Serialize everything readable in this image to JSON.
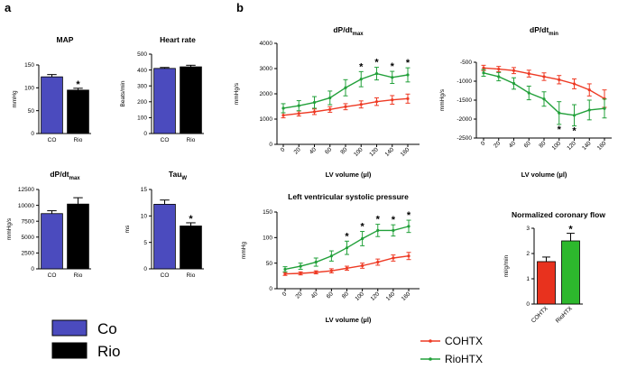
{
  "panel_labels": {
    "a": "a",
    "b": "b"
  },
  "colors": {
    "co": "#4B4BBE",
    "rio": "#000000",
    "cohtx": "#EE3A24",
    "riohtx": "#22A03A",
    "nc_cohtx": "#E8321E",
    "nc_riohtx": "#2DB82D"
  },
  "legend_a": [
    {
      "label": "Co",
      "color": "#4B4BBE"
    },
    {
      "label": "Rio",
      "color": "#000000"
    }
  ],
  "legend_b": [
    {
      "label": "COHTX",
      "color": "#EE3A24"
    },
    {
      "label": "RioHTX",
      "color": "#22A03A"
    }
  ],
  "chart_data": [
    {
      "id": "map",
      "type": "bar",
      "title": "MAP",
      "ylabel": "mmHg",
      "categories": [
        "CO",
        "Rio"
      ],
      "values": [
        124,
        95
      ],
      "errors": [
        5,
        4
      ],
      "ylim": [
        0,
        150
      ],
      "yticks": [
        "0",
        "50",
        "100",
        "150"
      ],
      "ytick_values": [
        0,
        50,
        100,
        150
      ],
      "colors": [
        "#4B4BBE",
        "#000000"
      ],
      "sig": [
        false,
        true
      ],
      "sig_label": "*"
    },
    {
      "id": "hr",
      "type": "bar",
      "title": "Heart rate",
      "ylabel": "Beats/min",
      "categories": [
        "CO",
        "Rio"
      ],
      "values": [
        410,
        420
      ],
      "errors": [
        6,
        10
      ],
      "ylim": [
        0,
        500
      ],
      "yticks": [
        "0",
        "100",
        "200",
        "300",
        "400",
        "500"
      ],
      "ytick_values": [
        0,
        100,
        200,
        300,
        400,
        500
      ],
      "colors": [
        "#4B4BBE",
        "#000000"
      ],
      "sig": [
        false,
        false
      ],
      "sig_label": "*"
    },
    {
      "id": "dpdt",
      "type": "bar",
      "title": "dP/dt",
      "title_sub": "max",
      "ylabel": "mmHg/s",
      "categories": [
        "CO",
        "Rio"
      ],
      "values": [
        8700,
        10200
      ],
      "errors": [
        450,
        1000
      ],
      "ylim": [
        0,
        12500
      ],
      "yticks": [
        "0",
        "2500",
        "5000",
        "7500",
        "10000",
        "12500"
      ],
      "ytick_values": [
        0,
        2500,
        5000,
        7500,
        10000,
        12500
      ],
      "colors": [
        "#4B4BBE",
        "#000000"
      ],
      "sig": [
        false,
        false
      ],
      "sig_label": "*"
    },
    {
      "id": "tau",
      "type": "bar",
      "title": "Tau",
      "title_sub": "W",
      "ylabel": "ms",
      "categories": [
        "CO",
        "Rio"
      ],
      "values": [
        12.2,
        8.1
      ],
      "errors": [
        0.8,
        0.6
      ],
      "ylim": [
        0,
        15
      ],
      "yticks": [
        "0",
        "5",
        "10",
        "15"
      ],
      "ytick_values": [
        0,
        5,
        10,
        15
      ],
      "colors": [
        "#4B4BBE",
        "#000000"
      ],
      "sig": [
        false,
        true
      ],
      "sig_label": "*"
    },
    {
      "id": "dpmax",
      "type": "line",
      "title": "dP/dt",
      "title_sub": "max",
      "ylabel": "mmHg/s",
      "xlabel": "LV volume (µl)",
      "x": [
        0,
        20,
        40,
        60,
        80,
        100,
        120,
        140,
        160
      ],
      "xticks": [
        "0",
        "20",
        "40",
        "60",
        "80",
        "100",
        "120",
        "140",
        "160"
      ],
      "ylim": [
        0,
        4000
      ],
      "yticks": [
        "0",
        "1000",
        "2000",
        "3000",
        "4000"
      ],
      "ytick_values": [
        0,
        1000,
        2000,
        3000,
        4000
      ],
      "series": [
        {
          "name": "COHTX",
          "color": "#EE3A24",
          "values": [
            1150,
            1220,
            1290,
            1380,
            1490,
            1580,
            1690,
            1760,
            1810
          ],
          "errors": [
            100,
            100,
            110,
            110,
            120,
            140,
            150,
            170,
            180
          ]
        },
        {
          "name": "RioHTX",
          "color": "#22A03A",
          "values": [
            1430,
            1530,
            1660,
            1840,
            2240,
            2580,
            2800,
            2650,
            2750
          ],
          "errors": [
            180,
            200,
            230,
            270,
            320,
            300,
            250,
            240,
            280
          ]
        }
      ],
      "sig": [
        false,
        false,
        false,
        false,
        false,
        true,
        true,
        true,
        true
      ],
      "sig_label": "*",
      "sig_side": "above"
    },
    {
      "id": "dpmin",
      "type": "line",
      "title": "dP/dt",
      "title_sub": "min",
      "ylabel": "mmHg/s",
      "xlabel": "LV volume (µl)",
      "x": [
        0,
        20,
        40,
        60,
        80,
        100,
        120,
        140,
        160
      ],
      "xticks": [
        "0",
        "20",
        "40",
        "60",
        "80",
        "100",
        "120",
        "140",
        "160"
      ],
      "ylim": [
        -2500,
        -500
      ],
      "yticks": [
        "-2500",
        "-2000",
        "-1500",
        "-1000",
        "-500"
      ],
      "ytick_values": [
        -2500,
        -2000,
        -1500,
        -1000,
        -500
      ],
      "series": [
        {
          "name": "COHTX",
          "color": "#EE3A24",
          "values": [
            -650,
            -680,
            -720,
            -800,
            -880,
            -960,
            -1070,
            -1230,
            -1460
          ],
          "errors": [
            70,
            70,
            80,
            90,
            100,
            110,
            130,
            160,
            230
          ]
        },
        {
          "name": "RioHTX",
          "color": "#22A03A",
          "values": [
            -780,
            -880,
            -1060,
            -1310,
            -1470,
            -1840,
            -1900,
            -1760,
            -1720
          ],
          "errors": [
            90,
            110,
            150,
            180,
            190,
            300,
            280,
            260,
            250
          ]
        }
      ],
      "sig": [
        false,
        false,
        false,
        false,
        false,
        true,
        true,
        false,
        false
      ],
      "sig_label": "*",
      "sig_side": "below"
    },
    {
      "id": "lvsp",
      "type": "line",
      "title": "Left ventricular systolic pressure",
      "ylabel": "mmHg",
      "xlabel": "LV volume (µl)",
      "x": [
        0,
        20,
        40,
        60,
        80,
        100,
        120,
        140,
        160
      ],
      "xticks": [
        "0",
        "20",
        "40",
        "60",
        "80",
        "100",
        "120",
        "140",
        "160"
      ],
      "ylim": [
        0,
        150
      ],
      "yticks": [
        "0",
        "50",
        "100",
        "150"
      ],
      "ytick_values": [
        0,
        50,
        100,
        150
      ],
      "series": [
        {
          "name": "COHTX",
          "color": "#EE3A24",
          "values": [
            29,
            30,
            32,
            35,
            40,
            45,
            52,
            60,
            64
          ],
          "errors": [
            3,
            3,
            3,
            4,
            4,
            5,
            6,
            6,
            7
          ]
        },
        {
          "name": "RioHTX",
          "color": "#22A03A",
          "values": [
            38,
            44,
            52,
            64,
            80,
            98,
            114,
            114,
            122
          ],
          "errors": [
            5,
            6,
            8,
            10,
            13,
            14,
            12,
            11,
            12
          ]
        }
      ],
      "sig": [
        false,
        false,
        false,
        false,
        true,
        true,
        true,
        true,
        true
      ],
      "sig_label": "*",
      "sig_side": "above"
    },
    {
      "id": "ncf",
      "type": "bar",
      "title": "Normalized coronary flow",
      "ylabel": "ml/g/min",
      "categories": [
        "COHTX",
        "RioHTX"
      ],
      "values": [
        1.68,
        2.5
      ],
      "errors": [
        0.18,
        0.3
      ],
      "ylim": [
        0,
        3
      ],
      "yticks": [
        "0",
        "1",
        "2",
        "3"
      ],
      "ytick_values": [
        0,
        1,
        2,
        3
      ],
      "colors": [
        "#E8321E",
        "#2DB82D"
      ],
      "sig": [
        false,
        true
      ],
      "sig_label": "*"
    }
  ]
}
